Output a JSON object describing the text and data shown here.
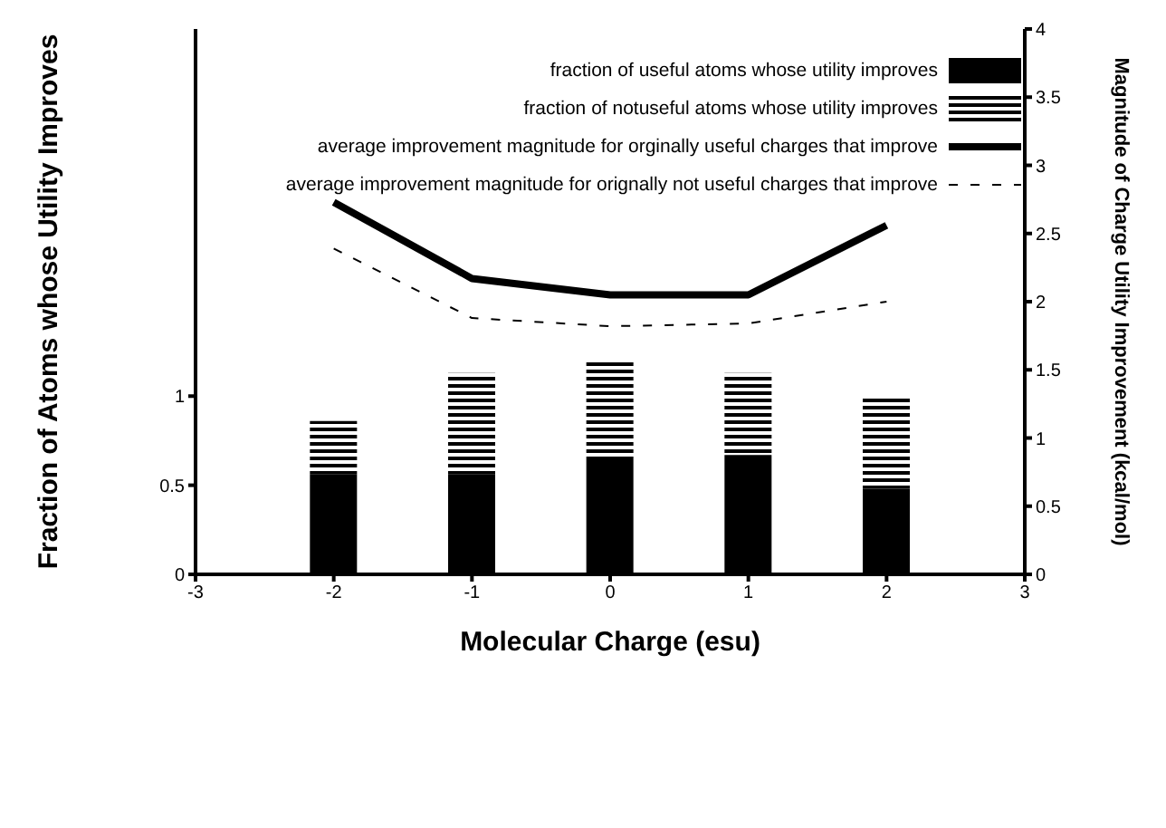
{
  "chart_data": {
    "type": "bar",
    "xlabel": "Molecular Charge (esu)",
    "ylabel": "Fraction of Atoms whose Utility Improves",
    "y2label": "Magnitude of Charge Utility Improvement (kcal/mol)",
    "x": [
      -2,
      -1,
      0,
      1,
      2
    ],
    "series": [
      {
        "name": "fraction of useful atoms whose utility improves",
        "color": "#000000",
        "values": [
          0.56,
          0.56,
          0.64,
          0.67,
          0.48
        ]
      },
      {
        "name": "fraction of notuseful atoms whose utility improves",
        "color": "#000000",
        "values": [
          0.3,
          0.57,
          0.56,
          0.46,
          0.51
        ]
      },
      {
        "name": "average improvement magnitude for orginally useful charges that improve",
        "type": "line",
        "axis": "y2",
        "color": "#000000",
        "line_style": "solid",
        "values": [
          2.73,
          2.17,
          2.05,
          2.05,
          2.56
        ]
      },
      {
        "name": "average improvement magnitude for orignally not useful charges that improve",
        "type": "line",
        "axis": "y2",
        "color": "#000000",
        "line_style": "dashed",
        "values": [
          2.39,
          1.88,
          1.82,
          1.84,
          2.0
        ]
      }
    ],
    "stacked": true,
    "xlim": [
      -3,
      3
    ],
    "xticks": [
      -3,
      -2,
      -1,
      0,
      1,
      2,
      3
    ],
    "ylim": [
      0,
      3.06
    ],
    "yticks": [
      0,
      0.5,
      1
    ],
    "y2lim": [
      0,
      4
    ],
    "y2ticks": [
      0,
      0.5,
      1,
      1.5,
      2,
      2.5,
      3,
      3.5,
      4
    ],
    "legend": "top right",
    "grid": false,
    "marker": "none"
  }
}
